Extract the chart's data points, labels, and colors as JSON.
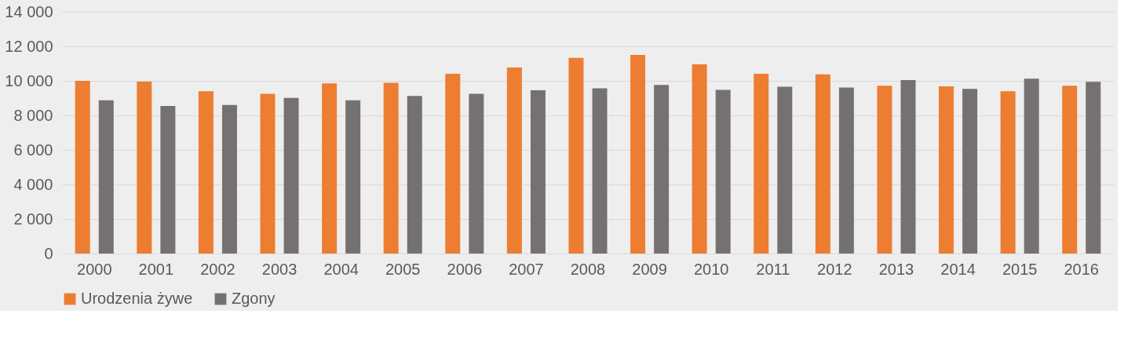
{
  "chart_data": {
    "type": "bar",
    "categories": [
      "2000",
      "2001",
      "2002",
      "2003",
      "2004",
      "2005",
      "2006",
      "2007",
      "2008",
      "2009",
      "2010",
      "2011",
      "2012",
      "2013",
      "2014",
      "2015",
      "2016"
    ],
    "series": [
      {
        "name": "Urodzenia żywe",
        "color": "#ed7d31",
        "values": [
          10000,
          9960,
          9400,
          9250,
          9850,
          9890,
          10410,
          10770,
          11330,
          11500,
          10950,
          10410,
          10370,
          9720,
          9680,
          9400,
          9720
        ]
      },
      {
        "name": "Zgony",
        "color": "#767171",
        "values": [
          8880,
          8540,
          8600,
          9010,
          8880,
          9120,
          9250,
          9460,
          9570,
          9760,
          9480,
          9660,
          9610,
          10040,
          9530,
          10130,
          9940
        ]
      }
    ],
    "ylim": [
      0,
      14000
    ],
    "yticks": [
      {
        "value": 0,
        "label": "0"
      },
      {
        "value": 2000,
        "label": "2 000"
      },
      {
        "value": 4000,
        "label": "4 000"
      },
      {
        "value": 6000,
        "label": "6 000"
      },
      {
        "value": 8000,
        "label": "8 000"
      },
      {
        "value": 10000,
        "label": "10 000"
      },
      {
        "value": 12000,
        "label": "12 000"
      },
      {
        "value": 14000,
        "label": "14 000"
      }
    ],
    "grid": "y",
    "legend": "bottom"
  }
}
